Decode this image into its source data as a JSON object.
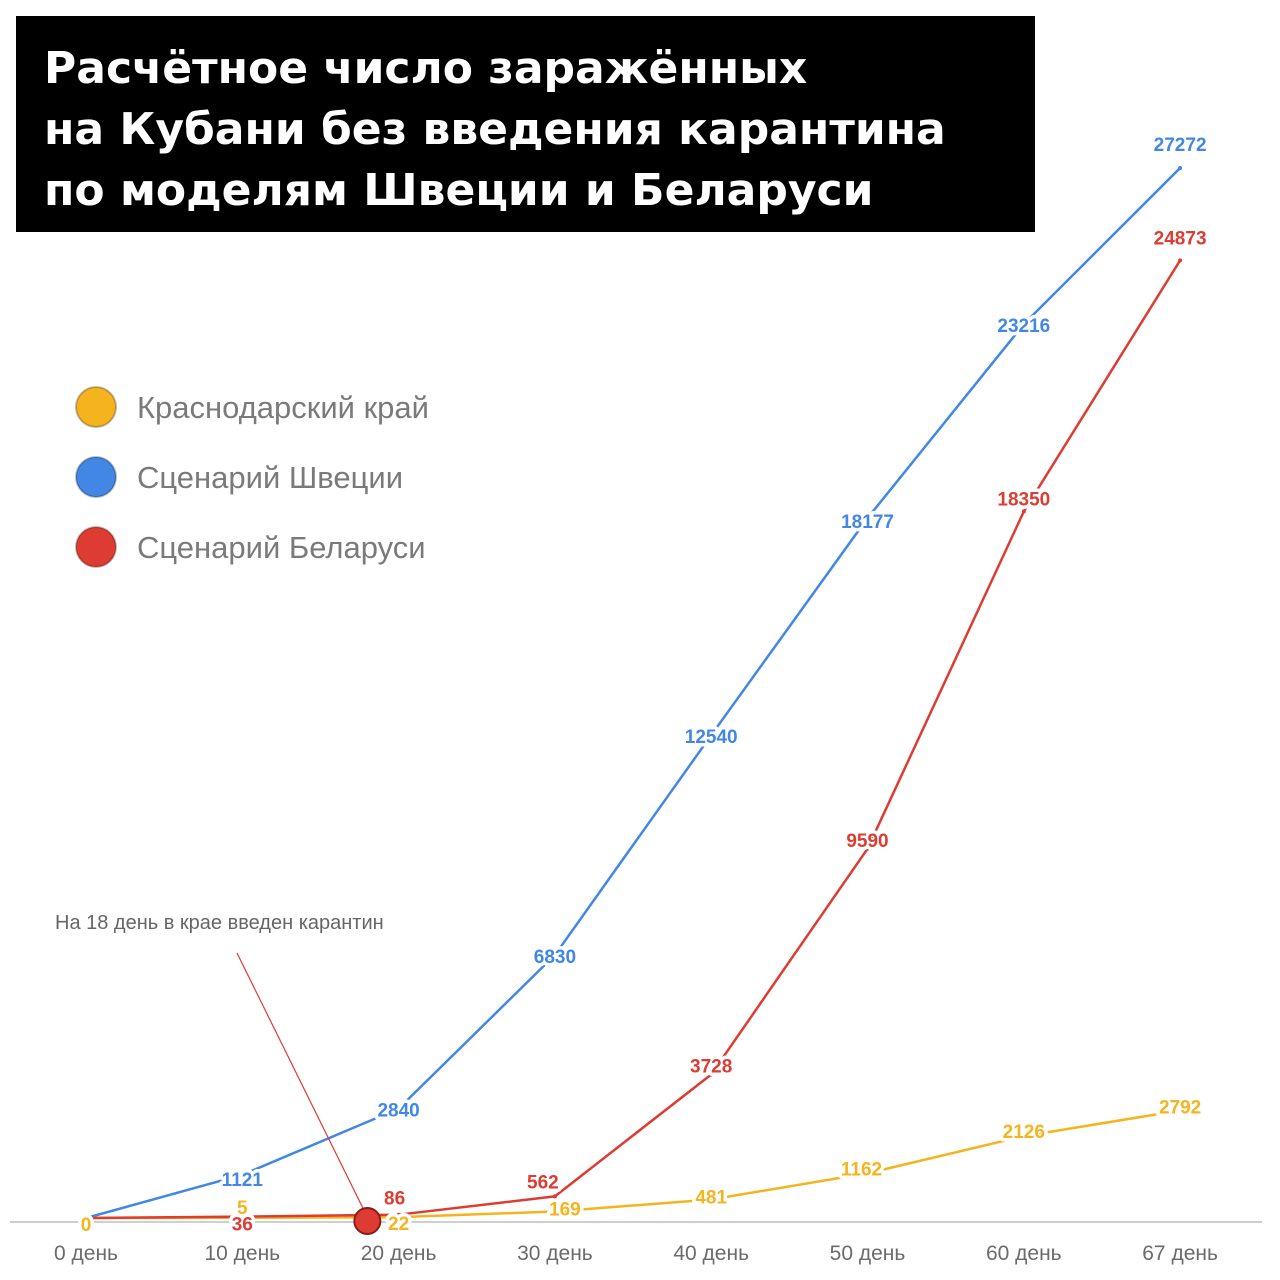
{
  "title": {
    "lines": [
      "Расчётное число заражённых",
      "на Кубани без введения карантина",
      "по моделям Швеции и Беларуси"
    ]
  },
  "chart_data": {
    "type": "line",
    "categories": [
      "0 день",
      "10 день",
      "20 день",
      "30 день",
      "40 день",
      "50 день",
      "60 день",
      "67 день"
    ],
    "series": [
      {
        "name": "Краснодарский край",
        "color": "#f5b41e",
        "points": [
          {
            "cat": 0,
            "label": "0"
          },
          {
            "cat": 1,
            "label": "5"
          },
          {
            "cat": 2,
            "label": "22"
          },
          {
            "cat": 3,
            "label": "169"
          },
          {
            "cat": 4,
            "label": "481"
          },
          {
            "cat": 5,
            "label": "1162"
          },
          {
            "cat": 6,
            "label": "2126"
          },
          {
            "cat": 7,
            "label": "2792"
          }
        ]
      },
      {
        "name": "Сценарий Швеции",
        "color": "#4286e6",
        "points": [
          {
            "cat": 0,
            "label": ""
          },
          {
            "cat": 1,
            "label": "1121"
          },
          {
            "cat": 2,
            "label": "2840"
          },
          {
            "cat": 3,
            "label": "6830"
          },
          {
            "cat": 4,
            "label": "12540"
          },
          {
            "cat": 5,
            "label": "18177"
          },
          {
            "cat": 6,
            "label": "23216"
          },
          {
            "cat": 7,
            "label": "27272"
          }
        ]
      },
      {
        "name": "Сценарий Беларуси",
        "color": "#dc3c32",
        "points": [
          {
            "cat": 0,
            "label": ""
          },
          {
            "cat": 1,
            "label": "36"
          },
          {
            "cat": 2,
            "label": "86"
          },
          {
            "cat": 3,
            "label": "562"
          },
          {
            "cat": 4,
            "label": "3728"
          },
          {
            "cat": 5,
            "label": "9590"
          },
          {
            "cat": 6,
            "label": "18350"
          },
          {
            "cat": 7,
            "label": "24873"
          }
        ]
      }
    ],
    "annotation": {
      "text": "На 18 день в крае введен карантин",
      "day": 18,
      "color": "#dc3c32"
    },
    "legend_position": "top-left",
    "grid": false
  }
}
